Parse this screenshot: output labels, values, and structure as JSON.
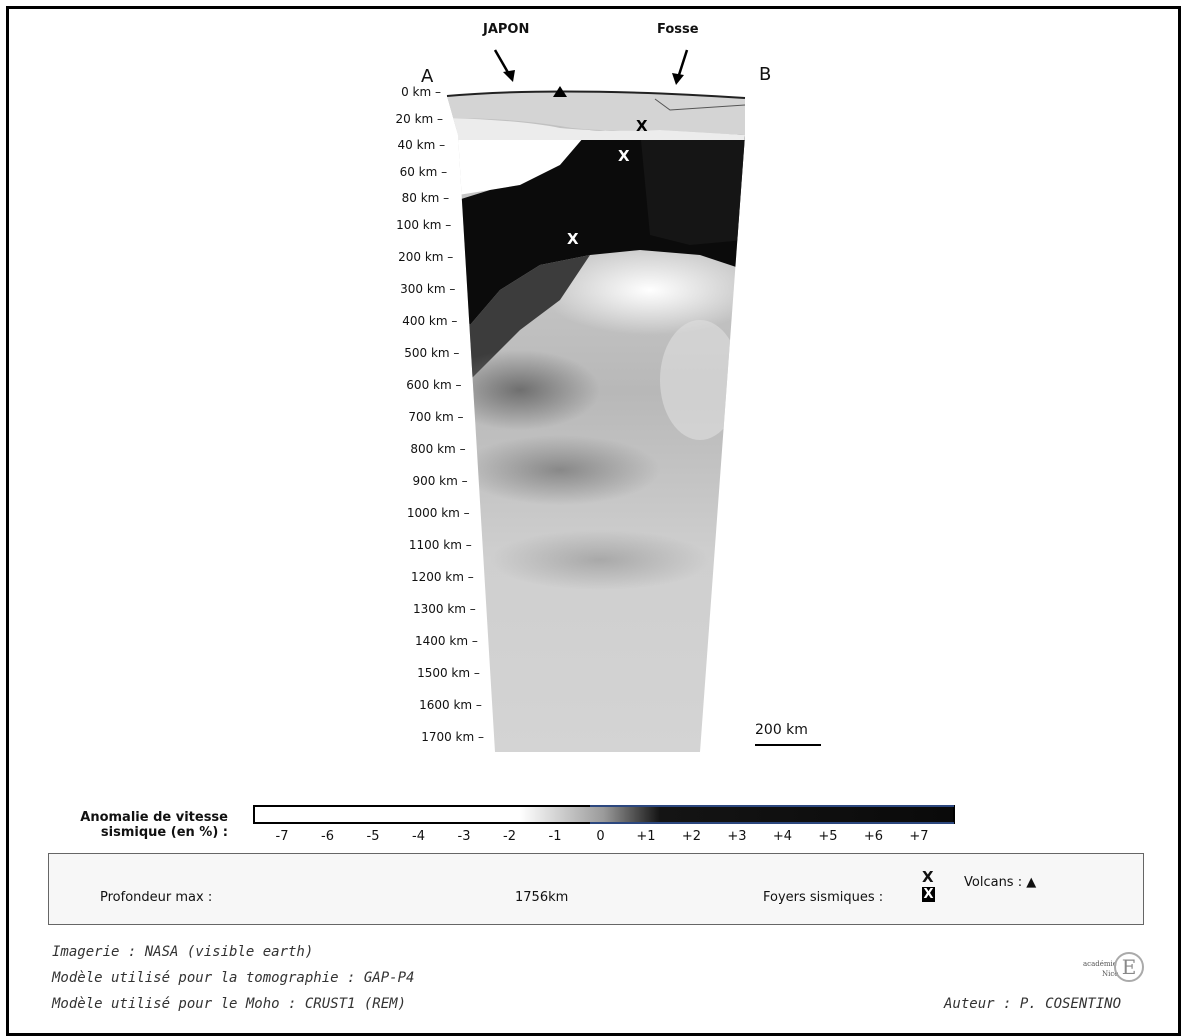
{
  "section": {
    "label_a": "A",
    "label_b": "B",
    "japon_label": "JAPON",
    "fosse_label": "Fosse",
    "volcano_symbol": "▲",
    "depth_ticks": [
      "0 km",
      "20 km",
      "40 km",
      "60 km",
      "80 km",
      "100 km",
      "200 km",
      "300 km",
      "400 km",
      "500 km",
      "600 km",
      "700 km",
      "800 km",
      "900 km",
      "1000 km",
      "1100 km",
      "1200 km",
      "1300 km",
      "1400 km",
      "1500 km",
      "1600 km",
      "1700 km"
    ],
    "seismic_focus_marker": "X",
    "scale_bar_label": "200 km"
  },
  "legend": {
    "title_line1": "Anomalie de vitesse",
    "title_line2": "sismique (en %) :",
    "values": [
      "-7",
      "-6",
      "-5",
      "-4",
      "-3",
      "-2",
      "-1",
      "0",
      "+1",
      "+2",
      "+3",
      "+4",
      "+5",
      "+6",
      "+7"
    ],
    "color_light": "#ffffff",
    "color_dark": "#0a0a0a"
  },
  "controls": {
    "depth_label": "Profondeur max :",
    "depth_value": "1756km",
    "foyers_label": "Foyers sismiques :",
    "foyers_checkbox": "X",
    "volcans_label": "Volcans :",
    "volcans_symbol": "▲"
  },
  "credits": {
    "line1": "Imagerie : NASA (visible earth)",
    "line2": "Modèle utilisé pour la tomographie : GAP-P4",
    "line3": "Modèle utilisé pour le Moho : CRUST1 (REM)",
    "author": "Auteur : P. COSENTINO",
    "logo_text_1": "académie",
    "logo_text_2": "Nice",
    "logo_letter": "E"
  }
}
